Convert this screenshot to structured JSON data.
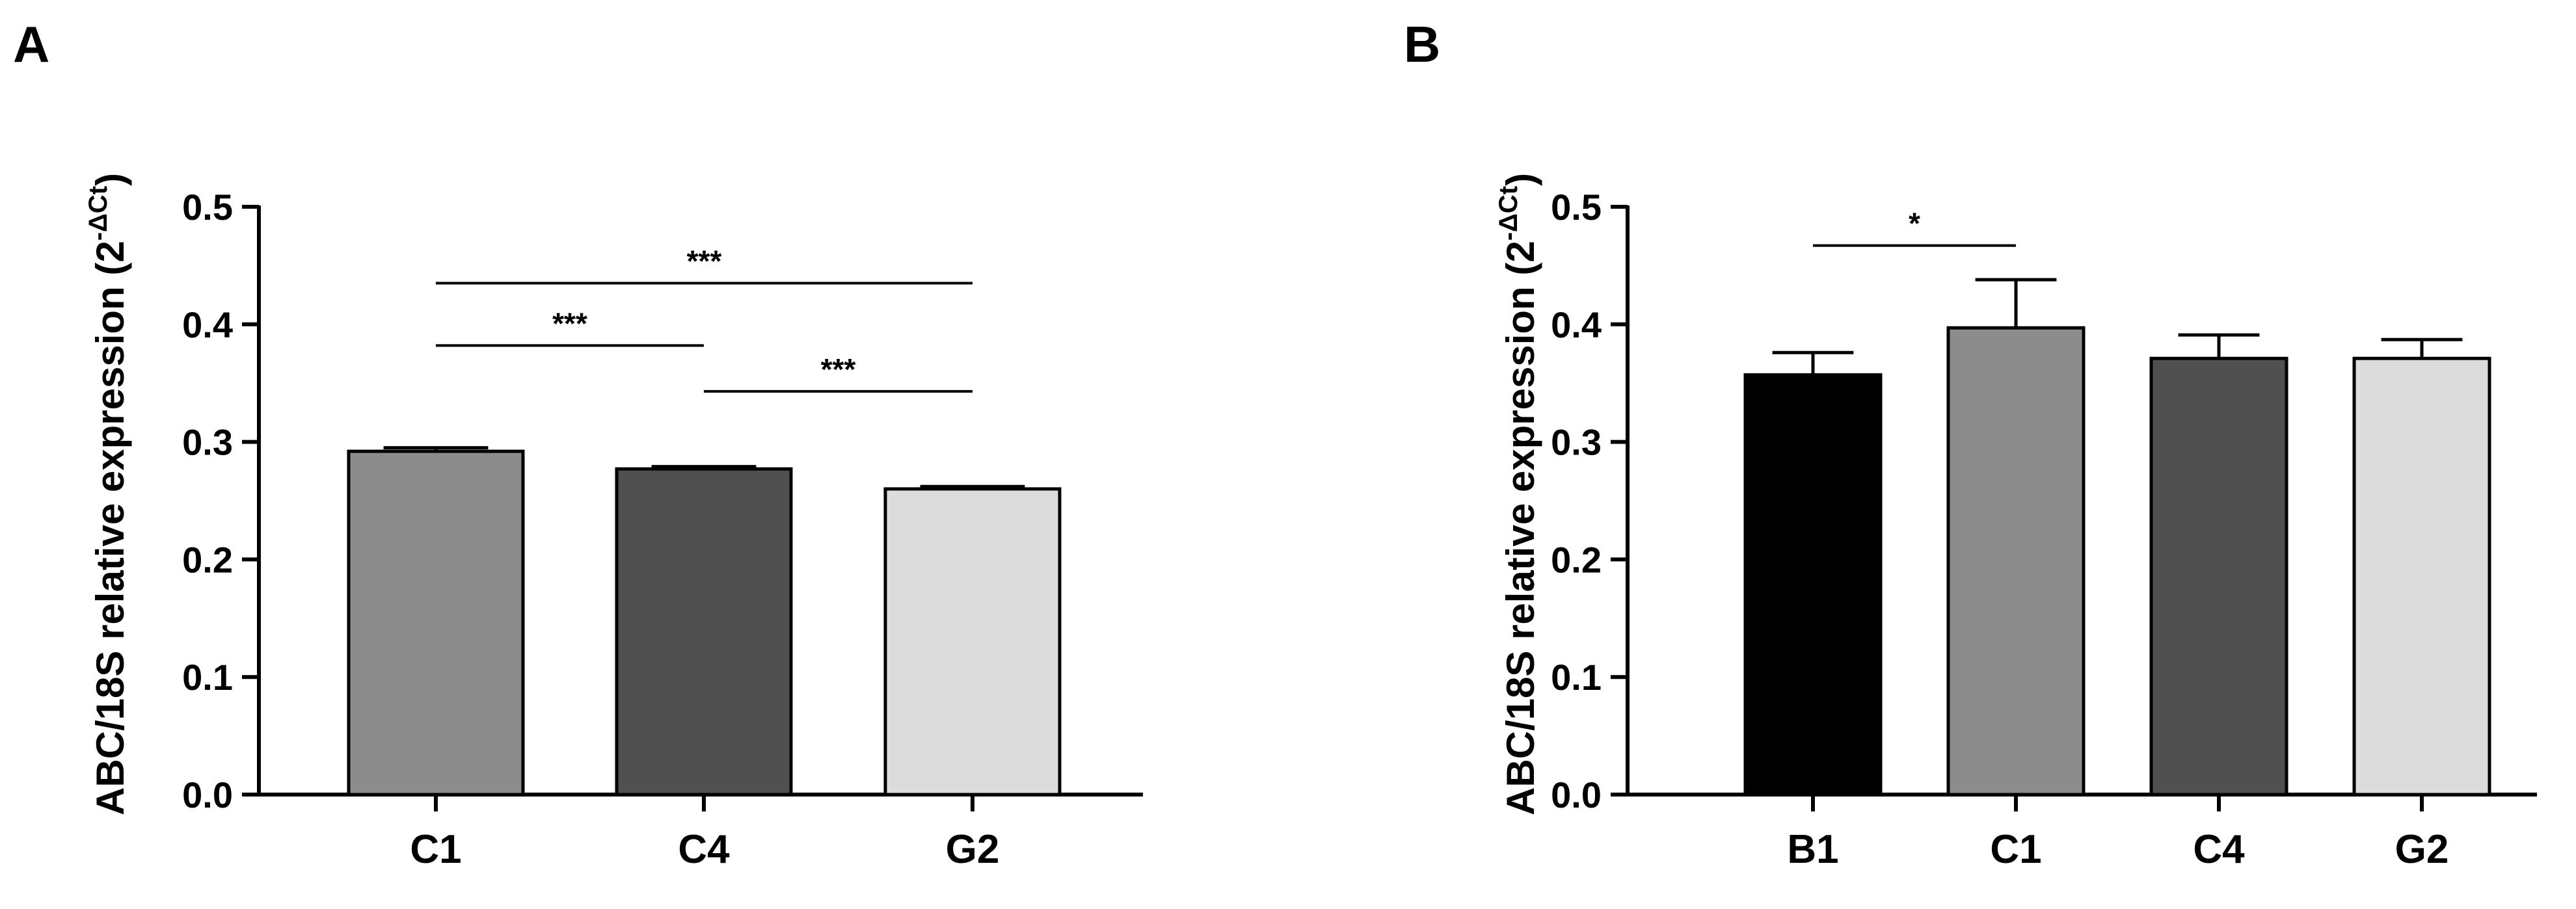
{
  "chart_data": [
    {
      "panel": "A",
      "type": "bar",
      "ylabel": "ABC/18S relative expression (2",
      "ylabel_sup": "-ΔCt",
      "ylabel_close": ")",
      "ylim": [
        0,
        0.5
      ],
      "yticks": [
        "0.0",
        "0.1",
        "0.2",
        "0.3",
        "0.4",
        "0.5"
      ],
      "categories": [
        "C1",
        "C4",
        "G2"
      ],
      "values": [
        0.292,
        0.277,
        0.26
      ],
      "errors": [
        0.003,
        0.002,
        0.002
      ],
      "colors": [
        "#8c8c8c",
        "#505050",
        "#dcdcdc"
      ],
      "significance": [
        {
          "from": "C1",
          "to": "G2",
          "y": 0.435,
          "label": "***"
        },
        {
          "from": "C1",
          "to": "C4",
          "y": 0.382,
          "label": "***"
        },
        {
          "from": "C4",
          "to": "G2",
          "y": 0.343,
          "label": "***"
        }
      ]
    },
    {
      "panel": "B",
      "type": "bar",
      "ylabel": "ABC/18S relative expression (2",
      "ylabel_sup": "-ΔCt",
      "ylabel_close": ")",
      "ylim": [
        0,
        0.5
      ],
      "yticks": [
        "0.0",
        "0.1",
        "0.2",
        "0.3",
        "0.4",
        "0.5"
      ],
      "categories": [
        "B1",
        "C1",
        "C4",
        "G2"
      ],
      "values": [
        0.357,
        0.397,
        0.371,
        0.371
      ],
      "errors": [
        0.019,
        0.041,
        0.02,
        0.016
      ],
      "colors": [
        "#000000",
        "#8c8c8c",
        "#505050",
        "#dcdcdc"
      ],
      "significance": [
        {
          "from": "B1",
          "to": "C1",
          "y": 0.467,
          "label": "*"
        }
      ]
    }
  ]
}
